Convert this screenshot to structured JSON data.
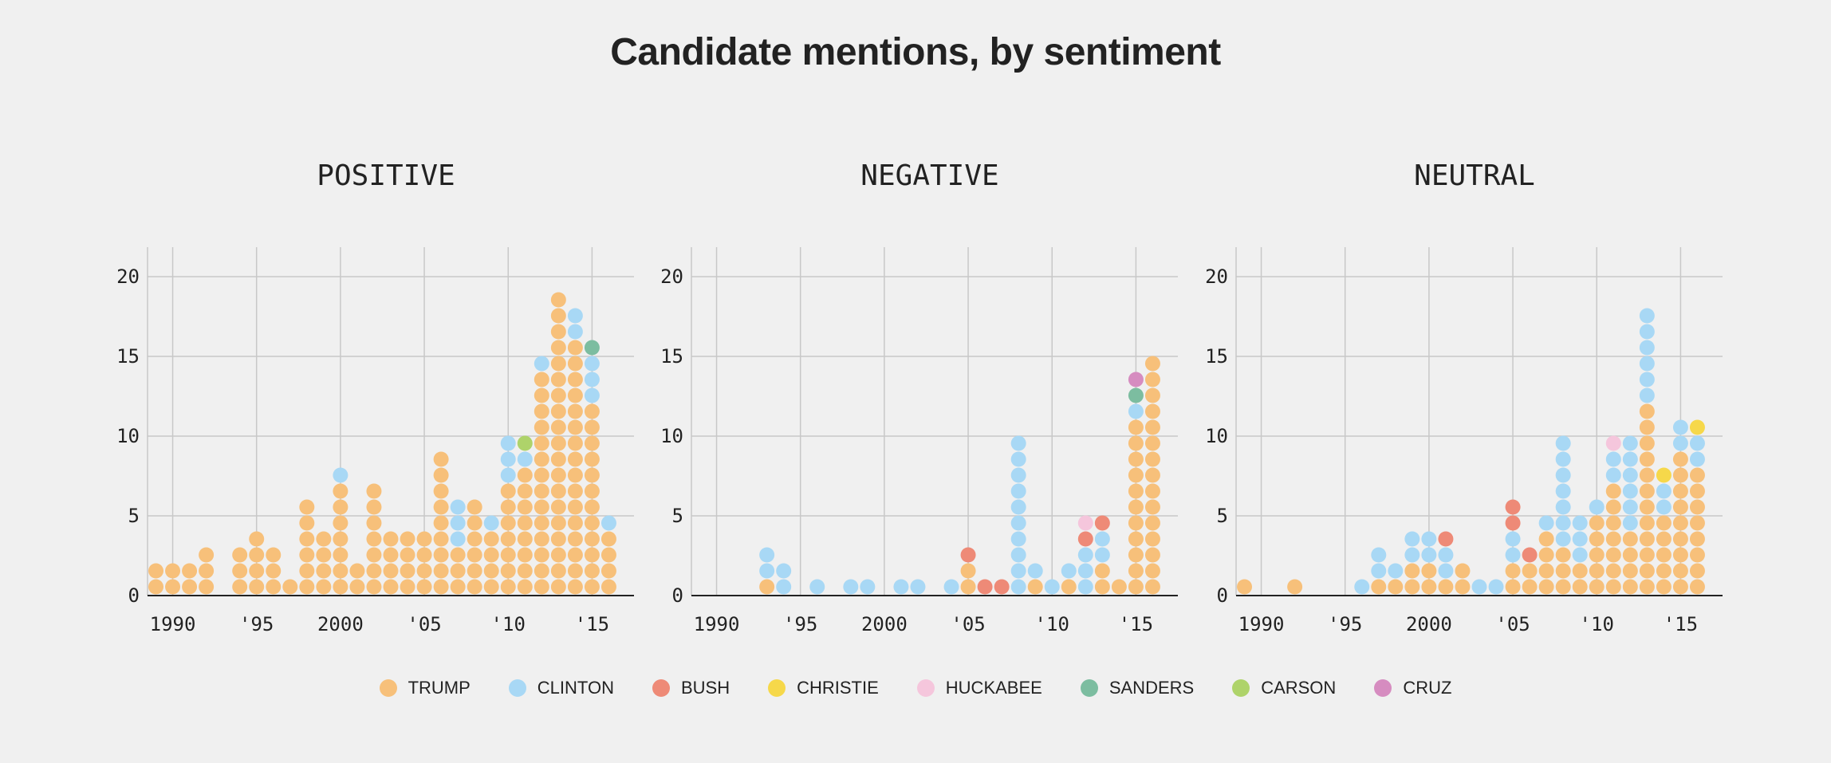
{
  "title": "Candidate mentions, by sentiment",
  "legend": [
    {
      "name": "TRUMP",
      "color": "#f7c07a"
    },
    {
      "name": "CLINTON",
      "color": "#a8d8f5"
    },
    {
      "name": "BUSH",
      "color": "#ee8a77"
    },
    {
      "name": "CHRISTIE",
      "color": "#f6d84a"
    },
    {
      "name": "HUCKABEE",
      "color": "#f5c6dc"
    },
    {
      "name": "SANDERS",
      "color": "#7cbda0"
    },
    {
      "name": "CARSON",
      "color": "#aed36a"
    },
    {
      "name": "CRUZ",
      "color": "#d68cc0"
    }
  ],
  "chart_data": [
    {
      "type": "scatter",
      "title": "POSITIVE",
      "ylim": [
        0,
        22
      ],
      "xlim": [
        1989,
        2017
      ],
      "yticks": [
        0,
        5,
        10,
        15,
        20
      ],
      "xticks": [
        1990,
        1995,
        2000,
        2005,
        2010,
        2015
      ],
      "xticklabels": [
        "1990",
        "'95",
        "2000",
        "'05",
        "'10",
        "'15"
      ],
      "grid": true,
      "columns": [
        {
          "year": 1989,
          "stack": [
            "TRUMP",
            "TRUMP"
          ]
        },
        {
          "year": 1990,
          "stack": [
            "TRUMP",
            "TRUMP"
          ]
        },
        {
          "year": 1991,
          "stack": [
            "TRUMP",
            "TRUMP"
          ]
        },
        {
          "year": 1992,
          "stack": [
            "TRUMP",
            "TRUMP",
            "TRUMP"
          ]
        },
        {
          "year": 1994,
          "stack": [
            "TRUMP",
            "TRUMP",
            "TRUMP"
          ]
        },
        {
          "year": 1995,
          "stack": [
            "TRUMP",
            "TRUMP",
            "TRUMP",
            "TRUMP"
          ]
        },
        {
          "year": 1996,
          "stack": [
            "TRUMP",
            "TRUMP",
            "TRUMP"
          ]
        },
        {
          "year": 1997,
          "stack": [
            "TRUMP"
          ]
        },
        {
          "year": 1998,
          "stack": [
            "TRUMP",
            "TRUMP",
            "TRUMP",
            "TRUMP",
            "TRUMP",
            "TRUMP"
          ]
        },
        {
          "year": 1999,
          "stack": [
            "TRUMP",
            "TRUMP",
            "TRUMP",
            "TRUMP"
          ]
        },
        {
          "year": 2000,
          "stack": [
            "TRUMP",
            "TRUMP",
            "TRUMP",
            "TRUMP",
            "TRUMP",
            "TRUMP",
            "TRUMP",
            "CLINTON"
          ]
        },
        {
          "year": 2001,
          "stack": [
            "TRUMP",
            "TRUMP"
          ]
        },
        {
          "year": 2002,
          "stack": [
            "TRUMP",
            "TRUMP",
            "TRUMP",
            "TRUMP",
            "TRUMP",
            "TRUMP",
            "TRUMP"
          ]
        },
        {
          "year": 2003,
          "stack": [
            "TRUMP",
            "TRUMP",
            "TRUMP",
            "TRUMP"
          ]
        },
        {
          "year": 2004,
          "stack": [
            "TRUMP",
            "TRUMP",
            "TRUMP",
            "TRUMP"
          ]
        },
        {
          "year": 2005,
          "stack": [
            "TRUMP",
            "TRUMP",
            "TRUMP",
            "TRUMP"
          ]
        },
        {
          "year": 2006,
          "stack": [
            "TRUMP",
            "TRUMP",
            "TRUMP",
            "TRUMP",
            "TRUMP",
            "TRUMP",
            "TRUMP",
            "TRUMP",
            "TRUMP"
          ]
        },
        {
          "year": 2007,
          "stack": [
            "TRUMP",
            "TRUMP",
            "TRUMP",
            "CLINTON",
            "CLINTON",
            "CLINTON"
          ]
        },
        {
          "year": 2008,
          "stack": [
            "TRUMP",
            "TRUMP",
            "TRUMP",
            "TRUMP",
            "TRUMP",
            "TRUMP"
          ]
        },
        {
          "year": 2009,
          "stack": [
            "TRUMP",
            "TRUMP",
            "TRUMP",
            "TRUMP",
            "CLINTON"
          ]
        },
        {
          "year": 2010,
          "stack": [
            "TRUMP",
            "TRUMP",
            "TRUMP",
            "TRUMP",
            "TRUMP",
            "TRUMP",
            "TRUMP",
            "CLINTON",
            "CLINTON",
            "CLINTON"
          ]
        },
        {
          "year": 2011,
          "stack": [
            "TRUMP",
            "TRUMP",
            "TRUMP",
            "TRUMP",
            "TRUMP",
            "TRUMP",
            "TRUMP",
            "TRUMP",
            "CLINTON",
            "CARSON"
          ]
        },
        {
          "year": 2012,
          "stack": [
            "TRUMP",
            "TRUMP",
            "TRUMP",
            "TRUMP",
            "TRUMP",
            "TRUMP",
            "TRUMP",
            "TRUMP",
            "TRUMP",
            "TRUMP",
            "TRUMP",
            "TRUMP",
            "TRUMP",
            "TRUMP",
            "CLINTON"
          ]
        },
        {
          "year": 2013,
          "stack": [
            "TRUMP",
            "TRUMP",
            "TRUMP",
            "TRUMP",
            "TRUMP",
            "TRUMP",
            "TRUMP",
            "TRUMP",
            "TRUMP",
            "TRUMP",
            "TRUMP",
            "TRUMP",
            "TRUMP",
            "TRUMP",
            "TRUMP",
            "TRUMP",
            "TRUMP",
            "TRUMP",
            "TRUMP"
          ]
        },
        {
          "year": 2014,
          "stack": [
            "TRUMP",
            "TRUMP",
            "TRUMP",
            "TRUMP",
            "TRUMP",
            "TRUMP",
            "TRUMP",
            "TRUMP",
            "TRUMP",
            "TRUMP",
            "TRUMP",
            "TRUMP",
            "TRUMP",
            "TRUMP",
            "TRUMP",
            "TRUMP",
            "CLINTON",
            "CLINTON"
          ]
        },
        {
          "year": 2015,
          "stack": [
            "TRUMP",
            "TRUMP",
            "TRUMP",
            "TRUMP",
            "TRUMP",
            "TRUMP",
            "TRUMP",
            "TRUMP",
            "TRUMP",
            "TRUMP",
            "TRUMP",
            "TRUMP",
            "CLINTON",
            "CLINTON",
            "CLINTON",
            "SANDERS"
          ]
        },
        {
          "year": 2016,
          "stack": [
            "TRUMP",
            "TRUMP",
            "TRUMP",
            "TRUMP",
            "CLINTON"
          ]
        }
      ]
    },
    {
      "type": "scatter",
      "title": "NEGATIVE",
      "ylim": [
        0,
        22
      ],
      "xlim": [
        1989,
        2017
      ],
      "yticks": [
        0,
        5,
        10,
        15,
        20
      ],
      "xticks": [
        1990,
        1995,
        2000,
        2005,
        2010,
        2015
      ],
      "xticklabels": [
        "1990",
        "'95",
        "2000",
        "'05",
        "'10",
        "'15"
      ],
      "grid": true,
      "columns": [
        {
          "year": 1993,
          "stack": [
            "TRUMP",
            "CLINTON",
            "CLINTON"
          ]
        },
        {
          "year": 1994,
          "stack": [
            "CLINTON",
            "CLINTON"
          ]
        },
        {
          "year": 1996,
          "stack": [
            "CLINTON"
          ]
        },
        {
          "year": 1998,
          "stack": [
            "CLINTON"
          ]
        },
        {
          "year": 1999,
          "stack": [
            "CLINTON"
          ]
        },
        {
          "year": 2001,
          "stack": [
            "CLINTON"
          ]
        },
        {
          "year": 2002,
          "stack": [
            "CLINTON"
          ]
        },
        {
          "year": 2004,
          "stack": [
            "CLINTON"
          ]
        },
        {
          "year": 2005,
          "stack": [
            "TRUMP",
            "TRUMP",
            "BUSH"
          ]
        },
        {
          "year": 2006,
          "stack": [
            "BUSH"
          ]
        },
        {
          "year": 2007,
          "stack": [
            "BUSH"
          ]
        },
        {
          "year": 2008,
          "stack": [
            "CLINTON",
            "CLINTON",
            "CLINTON",
            "CLINTON",
            "CLINTON",
            "CLINTON",
            "CLINTON",
            "CLINTON",
            "CLINTON",
            "CLINTON"
          ]
        },
        {
          "year": 2009,
          "stack": [
            "TRUMP",
            "CLINTON"
          ]
        },
        {
          "year": 2010,
          "stack": [
            "CLINTON"
          ]
        },
        {
          "year": 2011,
          "stack": [
            "TRUMP",
            "CLINTON"
          ]
        },
        {
          "year": 2012,
          "stack": [
            "CLINTON",
            "CLINTON",
            "CLINTON",
            "BUSH",
            "HUCKABEE"
          ]
        },
        {
          "year": 2013,
          "stack": [
            "TRUMP",
            "TRUMP",
            "CLINTON",
            "CLINTON",
            "BUSH"
          ]
        },
        {
          "year": 2014,
          "stack": [
            "TRUMP"
          ]
        },
        {
          "year": 2015,
          "stack": [
            "TRUMP",
            "TRUMP",
            "TRUMP",
            "TRUMP",
            "TRUMP",
            "TRUMP",
            "TRUMP",
            "TRUMP",
            "TRUMP",
            "TRUMP",
            "TRUMP",
            "CLINTON",
            "SANDERS",
            "CRUZ"
          ]
        },
        {
          "year": 2016,
          "stack": [
            "TRUMP",
            "TRUMP",
            "TRUMP",
            "TRUMP",
            "TRUMP",
            "TRUMP",
            "TRUMP",
            "TRUMP",
            "TRUMP",
            "TRUMP",
            "TRUMP",
            "TRUMP",
            "TRUMP",
            "TRUMP",
            "TRUMP"
          ]
        }
      ]
    },
    {
      "type": "scatter",
      "title": "NEUTRAL",
      "ylim": [
        0,
        22
      ],
      "xlim": [
        1989,
        2017
      ],
      "yticks": [
        0,
        5,
        10,
        15,
        20
      ],
      "xticks": [
        1990,
        1995,
        2000,
        2005,
        2010,
        2015
      ],
      "xticklabels": [
        "1990",
        "'95",
        "2000",
        "'05",
        "'10",
        "'15"
      ],
      "grid": true,
      "columns": [
        {
          "year": 1989,
          "stack": [
            "TRUMP"
          ]
        },
        {
          "year": 1992,
          "stack": [
            "TRUMP"
          ]
        },
        {
          "year": 1996,
          "stack": [
            "CLINTON"
          ]
        },
        {
          "year": 1997,
          "stack": [
            "TRUMP",
            "CLINTON",
            "CLINTON"
          ]
        },
        {
          "year": 1998,
          "stack": [
            "TRUMP",
            "CLINTON"
          ]
        },
        {
          "year": 1999,
          "stack": [
            "TRUMP",
            "TRUMP",
            "CLINTON",
            "CLINTON"
          ]
        },
        {
          "year": 2000,
          "stack": [
            "TRUMP",
            "TRUMP",
            "CLINTON",
            "CLINTON"
          ]
        },
        {
          "year": 2001,
          "stack": [
            "TRUMP",
            "CLINTON",
            "CLINTON",
            "BUSH"
          ]
        },
        {
          "year": 2002,
          "stack": [
            "TRUMP",
            "TRUMP"
          ]
        },
        {
          "year": 2003,
          "stack": [
            "CLINTON"
          ]
        },
        {
          "year": 2004,
          "stack": [
            "CLINTON"
          ]
        },
        {
          "year": 2005,
          "stack": [
            "TRUMP",
            "TRUMP",
            "CLINTON",
            "CLINTON",
            "BUSH",
            "BUSH"
          ]
        },
        {
          "year": 2006,
          "stack": [
            "TRUMP",
            "TRUMP",
            "BUSH"
          ]
        },
        {
          "year": 2007,
          "stack": [
            "TRUMP",
            "TRUMP",
            "TRUMP",
            "TRUMP",
            "CLINTON"
          ]
        },
        {
          "year": 2008,
          "stack": [
            "TRUMP",
            "TRUMP",
            "TRUMP",
            "CLINTON",
            "CLINTON",
            "CLINTON",
            "CLINTON",
            "CLINTON",
            "CLINTON",
            "CLINTON"
          ]
        },
        {
          "year": 2009,
          "stack": [
            "TRUMP",
            "TRUMP",
            "CLINTON",
            "CLINTON",
            "CLINTON"
          ]
        },
        {
          "year": 2010,
          "stack": [
            "TRUMP",
            "TRUMP",
            "TRUMP",
            "TRUMP",
            "TRUMP",
            "CLINTON"
          ]
        },
        {
          "year": 2011,
          "stack": [
            "TRUMP",
            "TRUMP",
            "TRUMP",
            "TRUMP",
            "TRUMP",
            "TRUMP",
            "TRUMP",
            "CLINTON",
            "CLINTON",
            "HUCKABEE"
          ]
        },
        {
          "year": 2012,
          "stack": [
            "TRUMP",
            "TRUMP",
            "TRUMP",
            "TRUMP",
            "CLINTON",
            "CLINTON",
            "CLINTON",
            "CLINTON",
            "CLINTON",
            "CLINTON"
          ]
        },
        {
          "year": 2013,
          "stack": [
            "TRUMP",
            "TRUMP",
            "TRUMP",
            "TRUMP",
            "TRUMP",
            "TRUMP",
            "TRUMP",
            "TRUMP",
            "TRUMP",
            "TRUMP",
            "TRUMP",
            "TRUMP",
            "CLINTON",
            "CLINTON",
            "CLINTON",
            "CLINTON",
            "CLINTON",
            "CLINTON"
          ]
        },
        {
          "year": 2014,
          "stack": [
            "TRUMP",
            "TRUMP",
            "TRUMP",
            "TRUMP",
            "TRUMP",
            "CLINTON",
            "CLINTON",
            "CHRISTIE"
          ]
        },
        {
          "year": 2015,
          "stack": [
            "TRUMP",
            "TRUMP",
            "TRUMP",
            "TRUMP",
            "TRUMP",
            "TRUMP",
            "TRUMP",
            "TRUMP",
            "TRUMP",
            "CLINTON",
            "CLINTON"
          ]
        },
        {
          "year": 2016,
          "stack": [
            "TRUMP",
            "TRUMP",
            "TRUMP",
            "TRUMP",
            "TRUMP",
            "TRUMP",
            "TRUMP",
            "TRUMP",
            "CLINTON",
            "CLINTON",
            "CHRISTIE"
          ]
        }
      ]
    }
  ]
}
